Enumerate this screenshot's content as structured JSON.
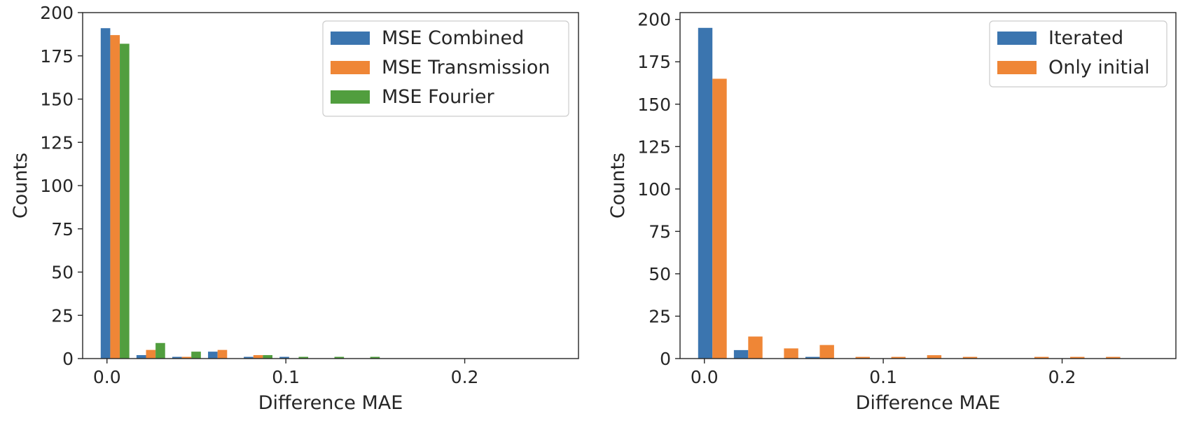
{
  "chart_data": [
    {
      "type": "bar",
      "title": "",
      "xlabel": "Difference MAE",
      "ylabel": "Counts",
      "xlim": [
        -0.0136,
        0.2636
      ],
      "ylim": [
        0,
        200
      ],
      "xticks": [
        0.0,
        0.1,
        0.2
      ],
      "xtick_labels": [
        "0.0",
        "0.1",
        "0.2"
      ],
      "yticks": [
        0,
        25,
        50,
        75,
        100,
        125,
        150,
        175,
        200
      ],
      "ytick_labels": [
        "0",
        "25",
        "50",
        "75",
        "100",
        "125",
        "150",
        "175",
        "200"
      ],
      "grid": false,
      "legend_position": "upper right",
      "bin_edges": [
        -0.0055,
        0.0145,
        0.0345,
        0.0545,
        0.0745,
        0.0945,
        0.1145,
        0.1345,
        0.1545,
        0.1745,
        0.1945,
        0.2145,
        0.2345
      ],
      "series": [
        {
          "name": "MSE Combined",
          "color": "#3b75af",
          "values": [
            191,
            2,
            1,
            4,
            1,
            1,
            0,
            0,
            0,
            0,
            0,
            0
          ]
        },
        {
          "name": "MSE Transmission",
          "color": "#ef8636",
          "values": [
            187,
            5,
            1,
            5,
            2,
            0,
            0,
            0,
            0,
            0,
            0,
            0
          ]
        },
        {
          "name": "MSE Fourier",
          "color": "#519e3e",
          "values": [
            182,
            9,
            4,
            0,
            2,
            1,
            1,
            1,
            0,
            0,
            0,
            0
          ]
        }
      ]
    },
    {
      "type": "bar",
      "title": "",
      "xlabel": "Difference MAE",
      "ylabel": "Counts",
      "xlim": [
        -0.0136,
        0.2636
      ],
      "ylim": [
        0,
        204
      ],
      "xticks": [
        0.0,
        0.1,
        0.2
      ],
      "xtick_labels": [
        "0.0",
        "0.1",
        "0.2"
      ],
      "yticks": [
        0,
        25,
        50,
        75,
        100,
        125,
        150,
        175,
        200
      ],
      "ytick_labels": [
        "0",
        "25",
        "50",
        "75",
        "100",
        "125",
        "150",
        "175",
        "200"
      ],
      "grid": false,
      "legend_position": "upper right",
      "bin_edges": [
        -0.0055,
        0.0145,
        0.0345,
        0.0545,
        0.0745,
        0.0945,
        0.1145,
        0.1345,
        0.1545,
        0.1745,
        0.1945,
        0.2145,
        0.2345
      ],
      "series": [
        {
          "name": "Iterated",
          "color": "#3b75af",
          "values": [
            195,
            5,
            0,
            1,
            0,
            0,
            0,
            0,
            0,
            0,
            0,
            0
          ]
        },
        {
          "name": "Only initial",
          "color": "#ef8636",
          "values": [
            165,
            13,
            6,
            8,
            1,
            1,
            2,
            1,
            0,
            1,
            1,
            1
          ]
        }
      ]
    }
  ]
}
